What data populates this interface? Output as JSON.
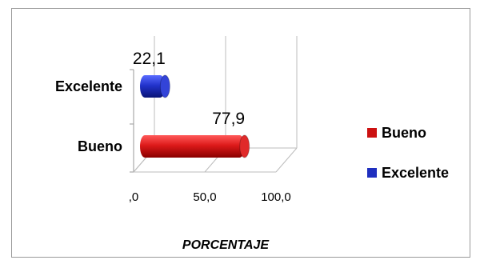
{
  "chart_data": {
    "type": "bar",
    "orientation": "horizontal",
    "three_d": true,
    "categories": [
      "Excelente",
      "Bueno"
    ],
    "values": [
      22.1,
      77.9
    ],
    "value_labels": [
      "22,1",
      "77,9"
    ],
    "colors": [
      "#1f2fbf",
      "#cc1111"
    ],
    "xlabel": "PORCENTAJE",
    "ylabel": "",
    "xlim": [
      0,
      100
    ],
    "x_ticks": [
      0,
      50,
      100
    ],
    "x_tick_labels": [
      ",0",
      "50,0",
      "100,0"
    ],
    "grid": true,
    "legend": {
      "placement": "right",
      "entries": [
        {
          "name": "Bueno",
          "color": "#cc1111"
        },
        {
          "name": "Excelente",
          "color": "#1f2fbf"
        }
      ]
    }
  }
}
